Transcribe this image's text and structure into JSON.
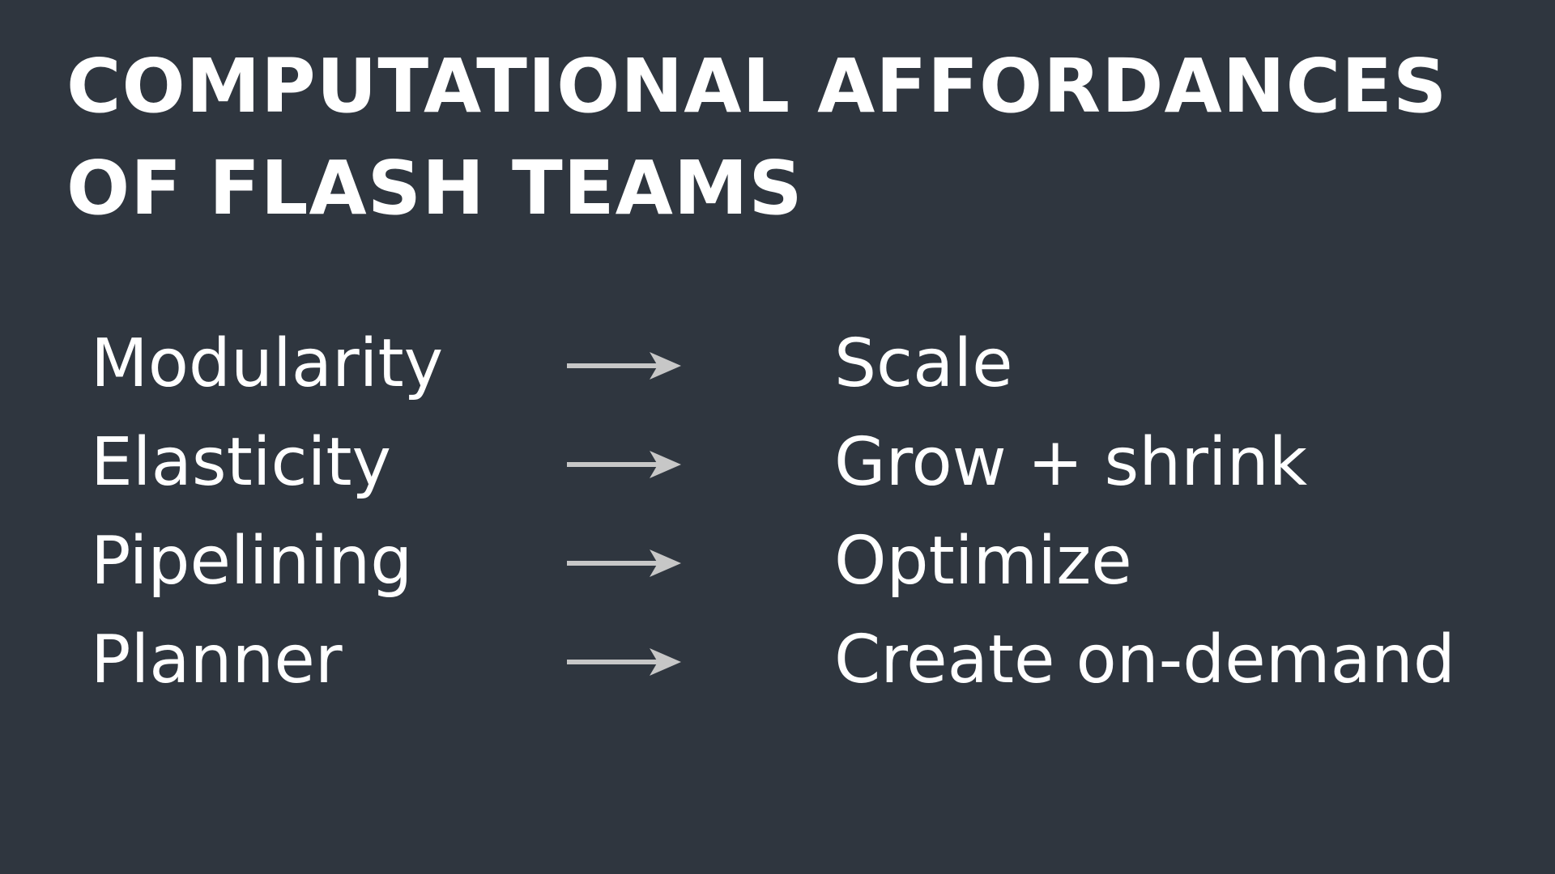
{
  "slide": {
    "title_lines": [
      "COMPUTATIONAL AFFORDANCES",
      "OF FLASH TEAMS"
    ],
    "rows": [
      {
        "left": "Modularity",
        "right": "Scale"
      },
      {
        "left": "Elasticity",
        "right": "Grow + shrink"
      },
      {
        "left": "Pipelining",
        "right": "Optimize"
      },
      {
        "left": "Planner",
        "right": "Create on-demand"
      }
    ]
  },
  "colors": {
    "background": "#2f363f",
    "text": "#ffffff",
    "arrow": "#c7c7c7"
  },
  "icons": {
    "arrow": "right-arrow-icon"
  }
}
